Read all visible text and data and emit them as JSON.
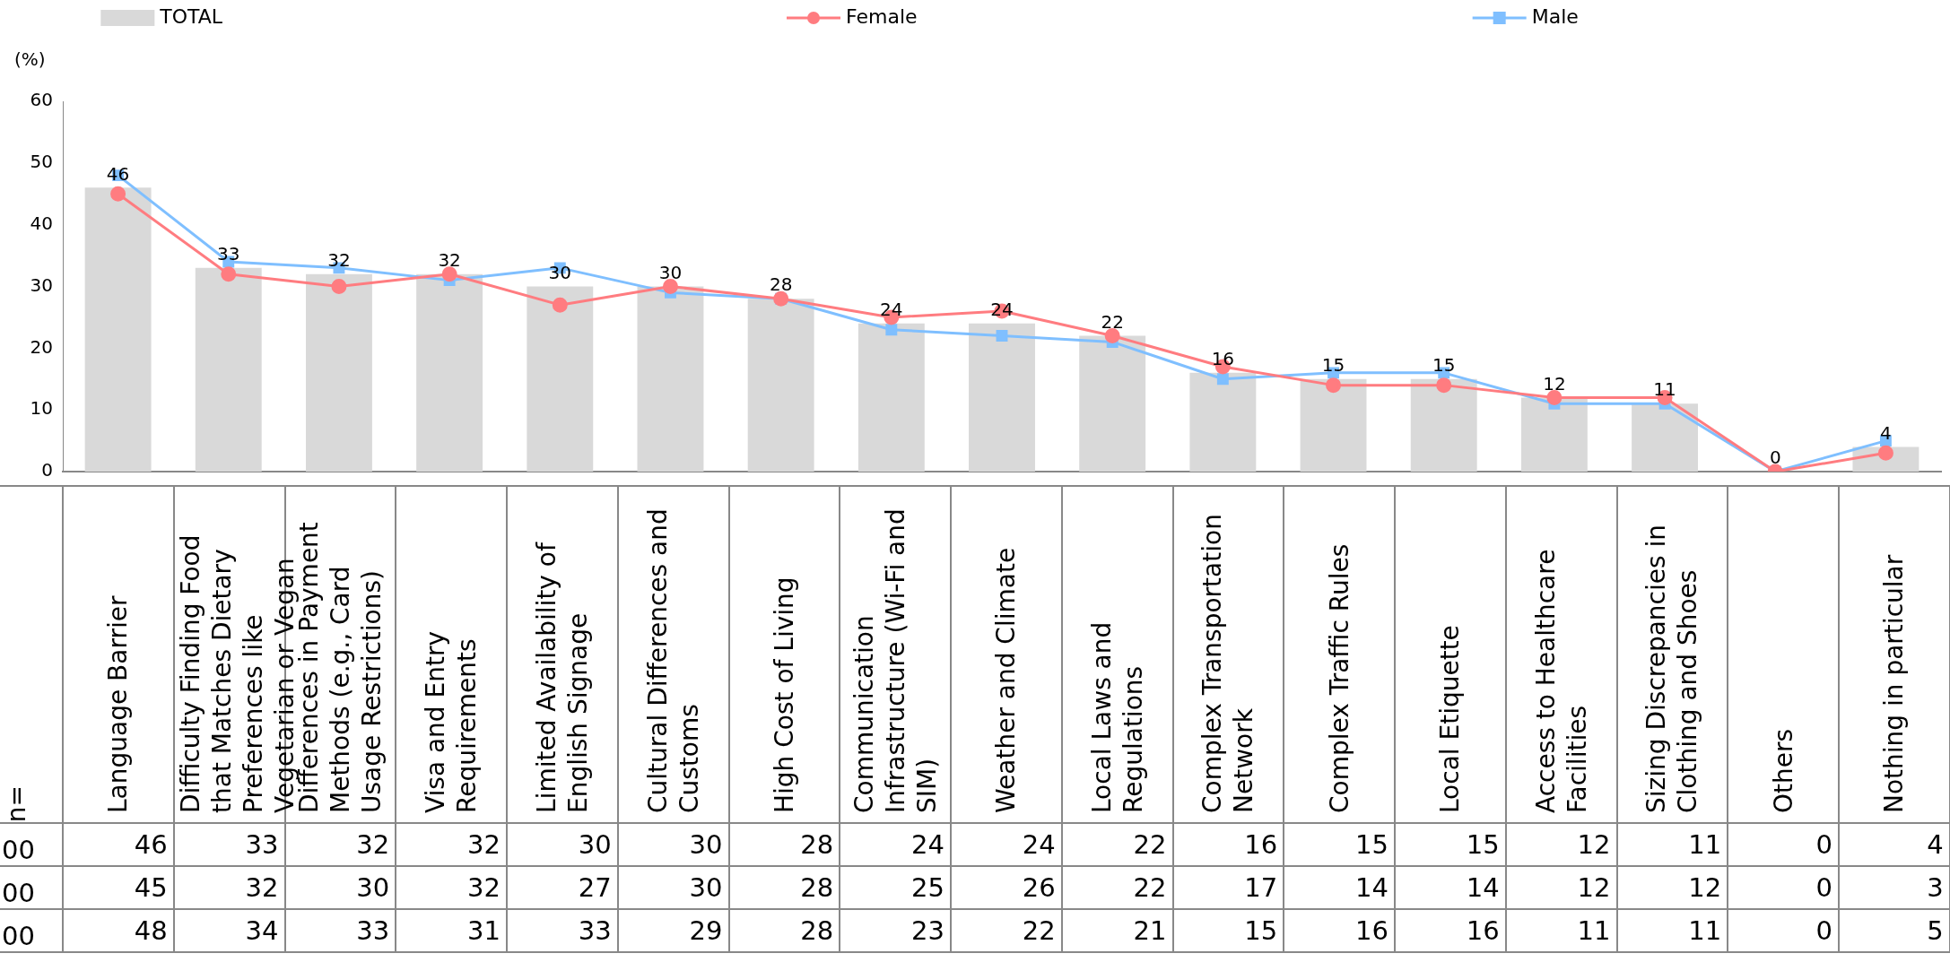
{
  "chart_data": {
    "type": "bar",
    "legend": "top",
    "data_labels": true,
    "categories": [
      "Language Barrier",
      "Difficulty Finding Food that Matches Dietary Preferences like Vegetarian or Vegan",
      "Differences in Payment Methods (e.g., Card Usage Restrictions)",
      "Visa and Entry Requirements",
      "Limited Availability of English Signage",
      "Cultural Differences and Customs",
      "High Cost of Living",
      "Communication Infrastructure (Wi-Fi and SIM)",
      "Weather and Climate",
      "Local Laws and Regulations",
      "Complex Transportation Network",
      "Complex Traffic Rules",
      "Local Etiquette",
      "Access to Healthcare Facilities",
      "Sizing Discrepancies in Clothing and Shoes",
      "Others",
      "Nothing in particular"
    ],
    "series": [
      {
        "name": "TOTAL",
        "color": "#d9d9d9",
        "values": [
          46,
          33,
          32,
          32,
          30,
          30,
          28,
          24,
          24,
          22,
          16,
          15,
          15,
          12,
          11,
          0,
          4
        ]
      },
      {
        "name": "Female",
        "type": "line",
        "marker": "circle",
        "color": "#ff7c80",
        "values": [
          45,
          32,
          30,
          32,
          27,
          30,
          28,
          25,
          26,
          22,
          17,
          14,
          14,
          12,
          12,
          0,
          3
        ]
      },
      {
        "name": "Male",
        "type": "line",
        "marker": "square",
        "color": "#7fbfff",
        "values": [
          48,
          34,
          33,
          31,
          33,
          29,
          28,
          23,
          22,
          21,
          15,
          16,
          16,
          11,
          11,
          0,
          5
        ]
      }
    ],
    "ylim": [
      0,
      60
    ],
    "yticks": [
      0,
      10,
      20,
      30,
      40,
      50,
      60
    ],
    "annotations": [
      "(%)",
      "n=",
      "00",
      "00",
      "00",
      {
        "text": "46",
        "x": "Language Barrier",
        "y": 46
      },
      {
        "text": "33",
        "x": "Difficulty Finding Food that Matches Dietary Preferences like Vegetarian or Vegan",
        "y": 33
      },
      {
        "text": "32",
        "x": "Differences in Payment Methods (e.g., Card Usage Restrictions)",
        "y": 32
      },
      {
        "text": "32",
        "x": "Visa and Entry Requirements",
        "y": 32
      },
      {
        "text": "30",
        "x": "Limited Availability of English Signage",
        "y": 30
      },
      {
        "text": "30",
        "x": "Cultural Differences and Customs",
        "y": 30
      },
      {
        "text": "28",
        "x": "High Cost of Living",
        "y": 28
      },
      {
        "text": "24",
        "x": "Communication Infrastructure (Wi-Fi and SIM)",
        "y": 24
      },
      {
        "text": "24",
        "x": "Weather and Climate",
        "y": 24
      },
      {
        "text": "22",
        "x": "Local Laws and Regulations",
        "y": 22
      },
      {
        "text": "16",
        "x": "Complex Transportation Network",
        "y": 16
      },
      {
        "text": "15",
        "x": "Complex Traffic Rules",
        "y": 15
      },
      {
        "text": "15",
        "x": "Local Etiquette",
        "y": 15
      },
      {
        "text": "12",
        "x": "Access to Healthcare Facilities",
        "y": 12
      },
      {
        "text": "11",
        "x": "Sizing Discrepancies in Clothing and Shoes",
        "y": 11
      },
      {
        "text": "0",
        "x": "Others",
        "y": 0
      },
      {
        "text": "4",
        "x": "Nothing in particular",
        "y": 4
      }
    ]
  }
}
